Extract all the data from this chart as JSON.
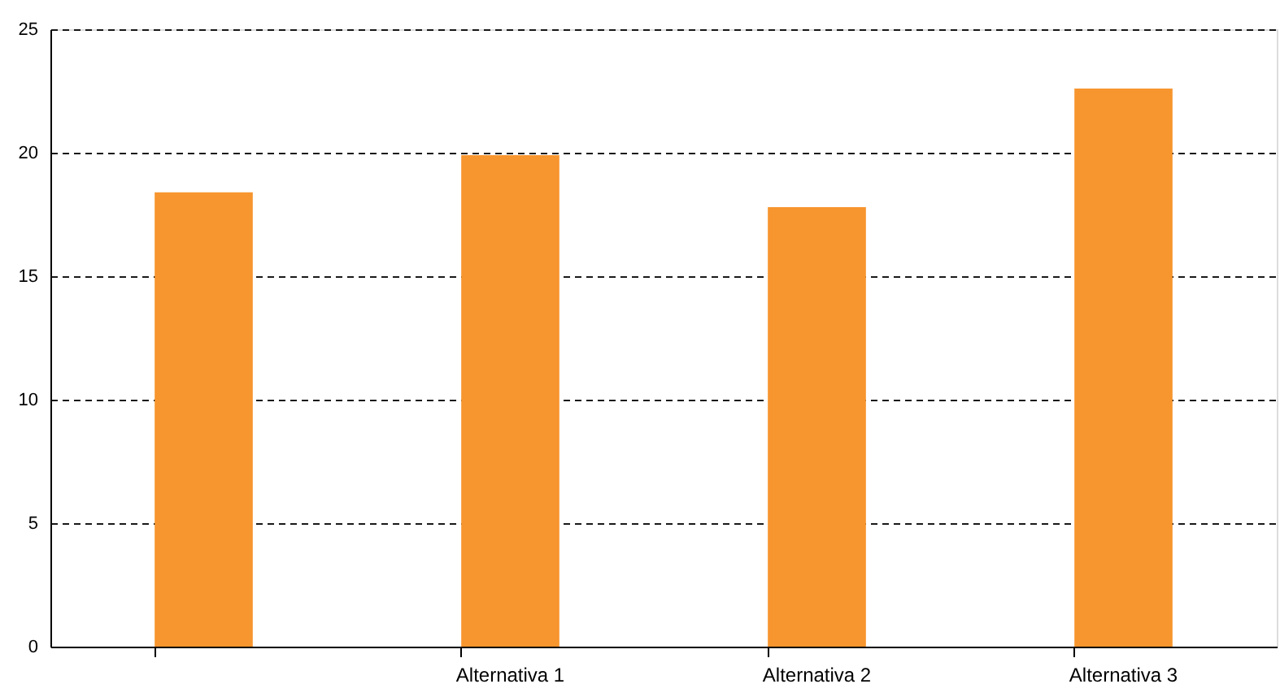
{
  "chart_data": {
    "type": "bar",
    "categories": [
      null,
      "Alternativa 1",
      "Alternativa 2",
      "Alternativa 3"
    ],
    "values": [
      18.4,
      19.9,
      17.8,
      22.6
    ],
    "color": "#f7952e",
    "ylim": [
      0,
      25
    ],
    "yticks": [
      0,
      5,
      10,
      15,
      20,
      25
    ],
    "grid": "y"
  }
}
